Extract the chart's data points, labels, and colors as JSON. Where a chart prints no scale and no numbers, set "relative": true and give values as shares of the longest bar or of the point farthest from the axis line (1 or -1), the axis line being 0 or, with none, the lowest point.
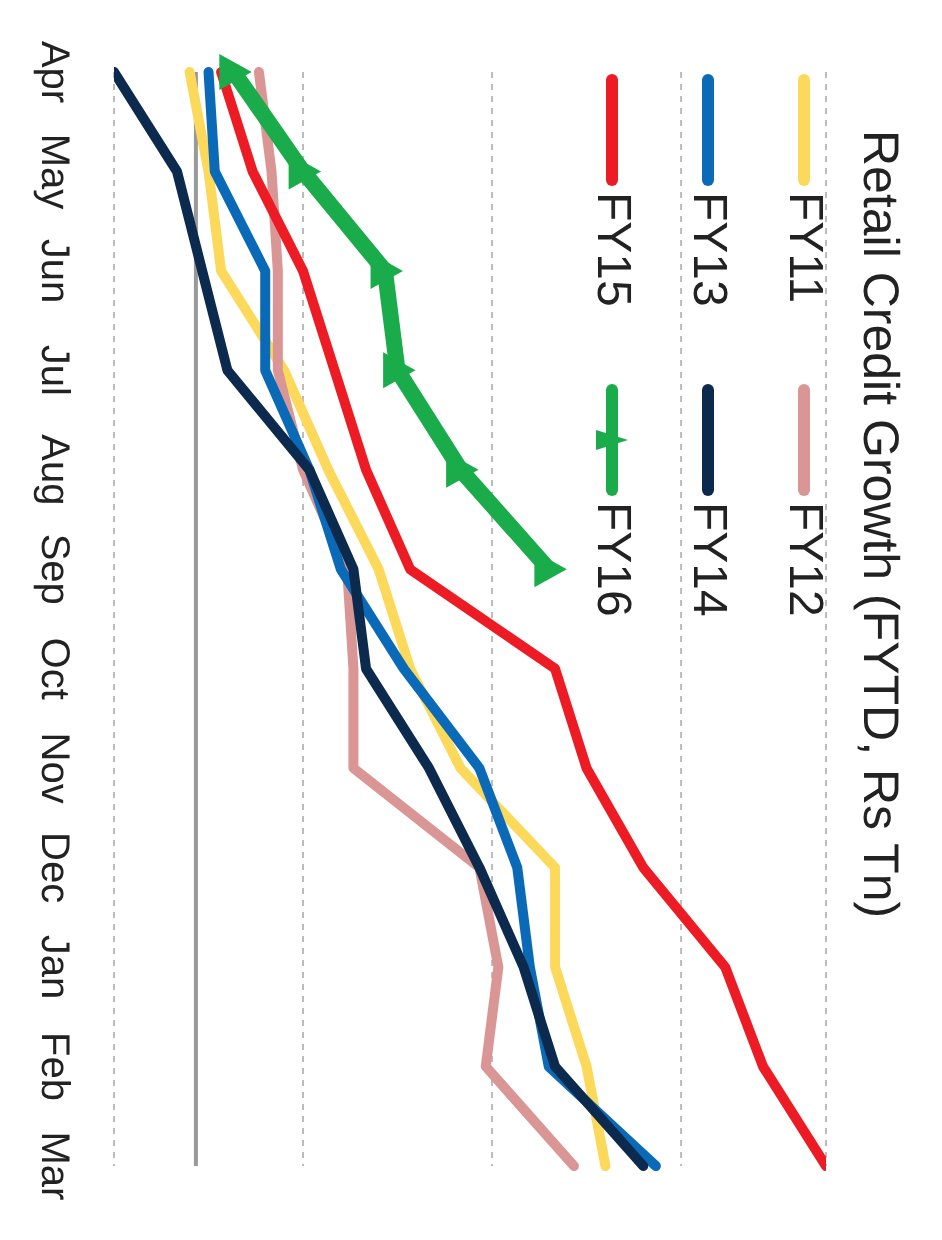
{
  "chart_data": {
    "type": "line",
    "title": "Retail Credit Growth (FYTD, Rs Tn)",
    "relative": true,
    "categories": [
      "Apr",
      "May",
      "Jun",
      "Jul",
      "Aug",
      "Sep",
      "Oct",
      "Nov",
      "Dec",
      "Jan",
      "Feb",
      "Mar"
    ],
    "orientation": "horizontal",
    "grid": "x",
    "legend": "top right",
    "marker": "none",
    "line_style": "solid",
    "series": [
      {
        "name": "FY11",
        "color": "#fcd95a",
        "values": [
          -0.01,
          0.02,
          0.04,
          0.14,
          0.21,
          0.29,
          0.34,
          0.42,
          0.57,
          0.57,
          0.62,
          0.65
        ]
      },
      {
        "name": "FY12",
        "color": "#d99694",
        "values": [
          0.1,
          0.12,
          0.13,
          0.13,
          0.17,
          0.24,
          0.25,
          0.25,
          0.45,
          0.48,
          0.46,
          0.6
        ]
      },
      {
        "name": "FY13",
        "color": "#0a6ab8",
        "values": [
          0.02,
          0.03,
          0.11,
          0.11,
          0.18,
          0.23,
          0.33,
          0.45,
          0.51,
          0.53,
          0.56,
          0.73
        ]
      },
      {
        "name": "FY14",
        "color": "#0c2a4e",
        "values": [
          -0.13,
          -0.03,
          0.01,
          0.05,
          0.18,
          0.25,
          0.27,
          0.37,
          0.45,
          0.52,
          0.57,
          0.71
        ]
      },
      {
        "name": "FY15",
        "color": "#ed1c24",
        "values": [
          0.04,
          0.09,
          0.17,
          0.22,
          0.27,
          0.34,
          0.57,
          0.62,
          0.71,
          0.84,
          0.9,
          1
        ]
      },
      {
        "name": "FY16",
        "color": "#1aab4a",
        "marker": "triangle",
        "values": [
          0.06,
          0.17,
          0.3,
          0.32,
          0.42,
          0.56,
          null,
          null,
          null,
          null,
          null,
          null
        ]
      }
    ]
  }
}
